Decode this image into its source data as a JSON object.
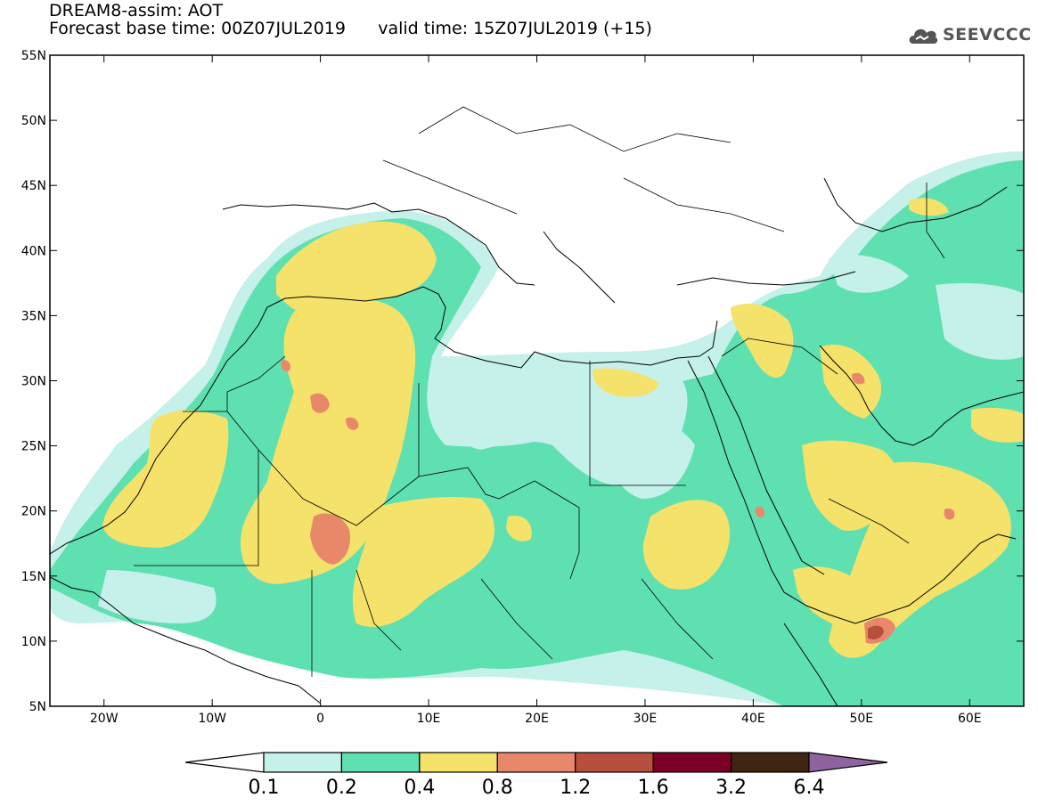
{
  "header": {
    "title": "DREAM8-assim: AOT",
    "base_time_label": "Forecast base time: 00Z07JUL2019",
    "valid_time_label": "valid time: 15Z07JUL2019 (+15)"
  },
  "logo": {
    "text": "SEEVCCC",
    "icon": "cloud-icon"
  },
  "map": {
    "lon_range": [
      -25,
      65
    ],
    "lat_range": [
      5,
      55
    ],
    "lat_ticks": [
      "55N",
      "50N",
      "45N",
      "40N",
      "35N",
      "30N",
      "25N",
      "20N",
      "15N",
      "10N",
      "5N"
    ],
    "lon_ticks": [
      "20W",
      "10W",
      "0",
      "10E",
      "20E",
      "30E",
      "40E",
      "50E",
      "60E"
    ]
  },
  "colorbar": {
    "colors": [
      "#ffffff",
      "#c6f0ea",
      "#5fe0b1",
      "#f5e26b",
      "#e9876a",
      "#b64f3e",
      "#7a0026",
      "#3f2412",
      "#8e63a0"
    ],
    "labels": [
      "0.1",
      "0.2",
      "0.4",
      "0.8",
      "1.2",
      "1.6",
      "3.2",
      "6.4"
    ]
  },
  "colors": {
    "aot_0_1_0_2": "#c6f0ea",
    "aot_0_2_0_4": "#5fe0b1",
    "aot_0_4_0_8": "#f5e26b",
    "aot_0_8_1_2": "#e9876a",
    "aot_1_2_1_6": "#b64f3e"
  }
}
